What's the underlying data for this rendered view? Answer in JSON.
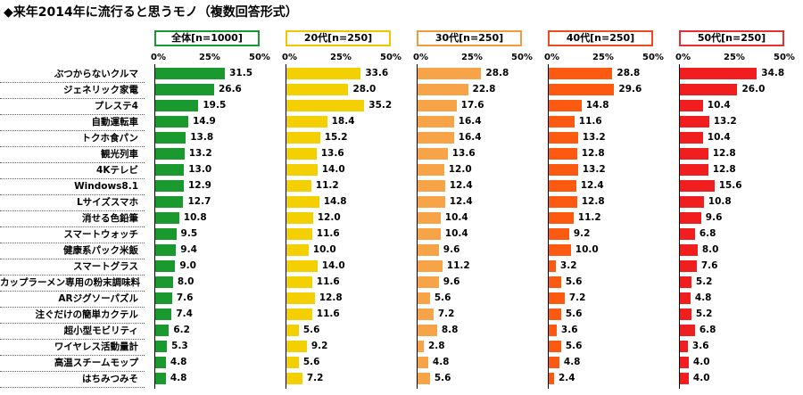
{
  "title": "◆来年2014年に流行ると思うモノ（複数回答形式）",
  "tick_labels": [
    "0%",
    "25%",
    "50%"
  ],
  "chart_data": {
    "type": "bar",
    "orientation": "horizontal",
    "xlim": [
      0,
      50
    ],
    "categories": [
      "ぶつからないクルマ",
      "ジェネリック家電",
      "プレステ4",
      "自動運転車",
      "トクホ食パン",
      "観光列車",
      "4Kテレビ",
      "Windows8.1",
      "Lサイズスマホ",
      "消せる色鉛筆",
      "スマートウォッチ",
      "健康系パック米飯",
      "スマートグラス",
      "カップラーメン専用の粉末調味料",
      "ARジグソーパズル",
      "注ぐだけの簡単カクテル",
      "超小型モビリティ",
      "ワイヤレス活動量計",
      "高温スチームモップ",
      "はちみつみそ"
    ],
    "series": [
      {
        "name": "全体[n=1000]",
        "color": "#1a9a2e",
        "border": "#1a9a2e",
        "values": [
          31.5,
          26.6,
          19.5,
          14.9,
          13.8,
          13.2,
          13.0,
          12.9,
          12.7,
          10.8,
          9.5,
          9.4,
          9.0,
          8.0,
          7.6,
          7.4,
          6.2,
          5.3,
          4.8,
          4.8
        ]
      },
      {
        "name": "20代[n=250]",
        "color": "#f5d000",
        "border": "#f0c800",
        "values": [
          33.6,
          28.0,
          35.2,
          18.4,
          15.2,
          13.6,
          14.0,
          11.2,
          14.8,
          12.0,
          11.6,
          10.0,
          14.0,
          11.6,
          12.8,
          11.6,
          5.6,
          9.2,
          5.6,
          7.2
        ]
      },
      {
        "name": "30代[n=250]",
        "color": "#f7a348",
        "border": "#f39a3a",
        "values": [
          28.8,
          22.8,
          17.6,
          16.4,
          16.4,
          13.6,
          12.0,
          12.4,
          12.4,
          10.4,
          10.4,
          9.6,
          11.2,
          9.6,
          5.6,
          7.2,
          8.8,
          2.8,
          4.8,
          5.6
        ]
      },
      {
        "name": "40代[n=250]",
        "color": "#fb5a10",
        "border": "#f04a1e",
        "values": [
          28.8,
          29.6,
          14.8,
          11.6,
          13.2,
          12.8,
          13.2,
          12.4,
          12.8,
          11.2,
          9.2,
          10.0,
          3.2,
          5.6,
          7.2,
          5.6,
          3.6,
          5.6,
          4.8,
          2.4
        ]
      },
      {
        "name": "50代[n=250]",
        "color": "#f01e1e",
        "border": "#e83030",
        "values": [
          34.8,
          26.0,
          10.4,
          13.2,
          10.4,
          12.8,
          12.8,
          15.6,
          10.8,
          9.6,
          6.8,
          8.0,
          7.6,
          5.2,
          4.8,
          5.2,
          6.8,
          3.6,
          4.0,
          4.0
        ]
      }
    ]
  }
}
